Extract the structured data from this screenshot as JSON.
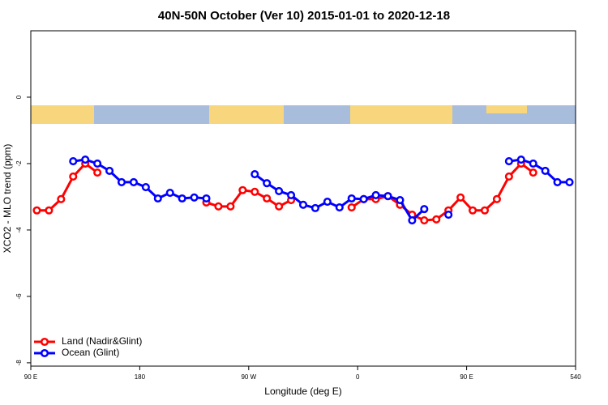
{
  "chart_data": {
    "type": "line",
    "title": "40N-50N October (Ver 10)   2015-01-01 to 2020-12-18",
    "x_label": "Longitude (deg E)",
    "y_label": "XCO2 - MLO trend (ppm)",
    "x": [
      95,
      105,
      115,
      125,
      135,
      145,
      155,
      165,
      175,
      185,
      195,
      205,
      215,
      225,
      235,
      245,
      255,
      265,
      275,
      285,
      295,
      305,
      315,
      325,
      335,
      345,
      355,
      365,
      375,
      385,
      395,
      405,
      415,
      425,
      435,
      445,
      455,
      465,
      475,
      485,
      495,
      505,
      515,
      525,
      535
    ],
    "series": [
      {
        "name": "Land (Nadir&Glint)",
        "color": "#ff0000",
        "values": [
          -3.41,
          -3.41,
          -3.07,
          -2.39,
          -2.0,
          -2.27,
          null,
          null,
          null,
          null,
          null,
          null,
          null,
          null,
          -3.17,
          -3.29,
          -3.29,
          -2.8,
          -2.85,
          -3.05,
          -3.29,
          -3.1,
          null,
          null,
          null,
          null,
          -3.32,
          -3.07,
          -3.07,
          -2.98,
          -3.24,
          -3.54,
          -3.71,
          -3.68,
          -3.41,
          -3.02,
          -3.41,
          -3.41,
          -3.07,
          -2.39,
          -2.0,
          -2.27,
          null,
          null,
          null
        ]
      },
      {
        "name": "Ocean (Glint)",
        "color": "#0000ff",
        "values": [
          null,
          null,
          null,
          -1.93,
          -1.88,
          -2.0,
          -2.22,
          -2.56,
          -2.56,
          -2.71,
          -3.05,
          -2.88,
          -3.05,
          -3.02,
          -3.05,
          null,
          null,
          null,
          -2.32,
          -2.59,
          -2.83,
          -2.95,
          -3.24,
          -3.34,
          -3.15,
          -3.32,
          -3.05,
          -3.07,
          -2.95,
          -2.98,
          -3.1,
          -3.71,
          -3.37,
          null,
          -3.54,
          null,
          null,
          null,
          null,
          -1.93,
          -1.88,
          -2.0,
          -2.22,
          -2.56,
          -2.56
        ]
      }
    ],
    "xlim": [
      90,
      540
    ],
    "xticks": [
      {
        "value": 90,
        "label": "90 E"
      },
      180,
      {
        "value": 270,
        "label": "90 W"
      },
      {
        "value": 360,
        "label": "0"
      },
      {
        "value": 450,
        "label": "90 E"
      },
      540
    ],
    "ylim": [
      -8.1,
      2
    ],
    "yticks": [
      0,
      -2,
      -4,
      -6,
      -8
    ],
    "legend": "bottom-left"
  }
}
